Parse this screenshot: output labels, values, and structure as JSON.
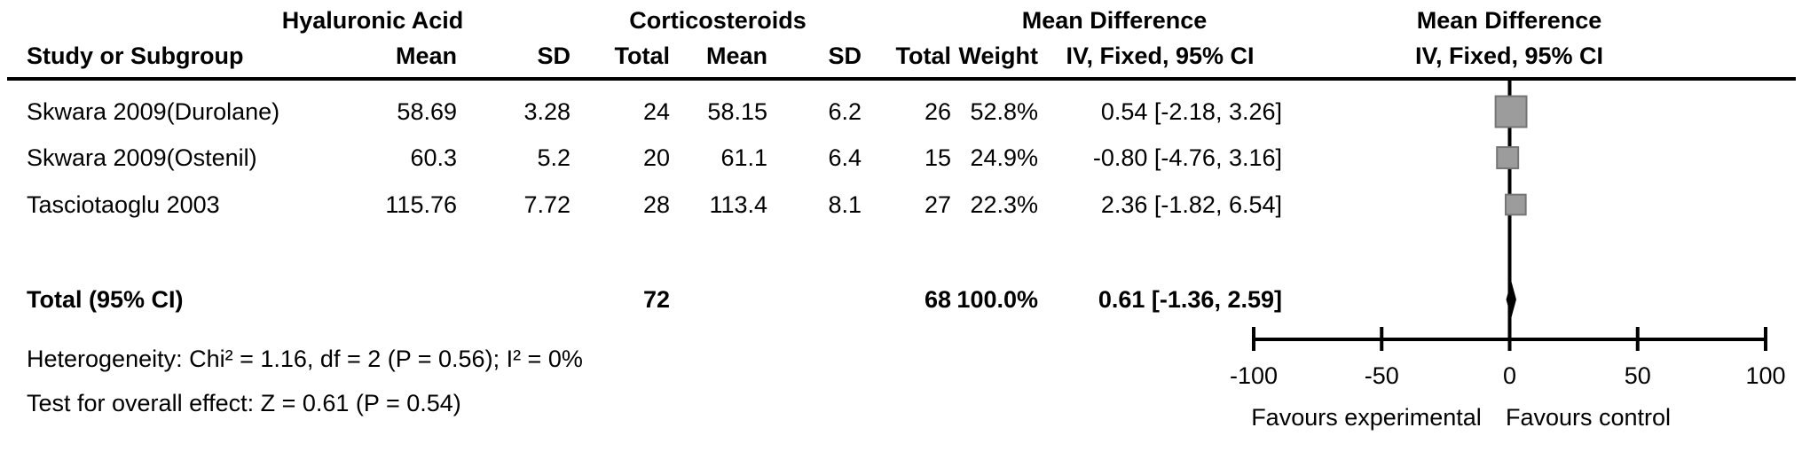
{
  "table": {
    "group_headers": {
      "exp": "Hyaluronic Acid",
      "ctl": "Corticosteroids",
      "md_left": "Mean Difference",
      "md_right": "Mean Difference"
    },
    "columns": {
      "study": "Study or Subgroup",
      "mean1": "Mean",
      "sd1": "SD",
      "total1": "Total",
      "mean2": "Mean",
      "sd2": "SD",
      "total2": "Total",
      "weight": "Weight",
      "ci": "IV, Fixed, 95% CI",
      "ci_plot": "IV, Fixed, 95% CI"
    },
    "rows": [
      {
        "study": "Skwara 2009(Durolane)",
        "mean1": "58.69",
        "sd1": "3.28",
        "total1": "24",
        "mean2": "58.15",
        "sd2": "6.2",
        "total2": "26",
        "weight": "52.8%",
        "ci": "0.54 [-2.18, 3.26]"
      },
      {
        "study": "Skwara 2009(Ostenil)",
        "mean1": "60.3",
        "sd1": "5.2",
        "total1": "20",
        "mean2": "61.1",
        "sd2": "6.4",
        "total2": "15",
        "weight": "24.9%",
        "ci": "-0.80 [-4.76, 3.16]"
      },
      {
        "study": "Tasciotaoglu 2003",
        "mean1": "115.76",
        "sd1": "7.72",
        "total1": "28",
        "mean2": "113.4",
        "sd2": "8.1",
        "total2": "27",
        "weight": "22.3%",
        "ci": "2.36 [-1.82, 6.54]"
      }
    ],
    "total_row": {
      "label": "Total (95% CI)",
      "total1": "72",
      "total2": "68",
      "weight": "100.0%",
      "ci": "0.61 [-1.36, 2.59]"
    },
    "footer": {
      "heterogeneity": "Heterogeneity: Chi² = 1.16, df = 2 (P = 0.56); I² = 0%",
      "overall_effect": "Test for overall effect: Z = 0.61 (P = 0.54)"
    }
  },
  "chart_data": {
    "type": "scatter",
    "subtype": "forest-plot",
    "effect_measure": "Mean Difference, IV, Fixed, 95% CI",
    "studies": [
      {
        "name": "Skwara 2009(Durolane)",
        "effect": 0.54,
        "ci_low": -2.18,
        "ci_high": 3.26,
        "weight": 52.8
      },
      {
        "name": "Skwara 2009(Ostenil)",
        "effect": -0.8,
        "ci_low": -4.76,
        "ci_high": 3.16,
        "weight": 24.9
      },
      {
        "name": "Tasciotaoglu 2003",
        "effect": 2.36,
        "ci_low": -1.82,
        "ci_high": 6.54,
        "weight": 22.3
      }
    ],
    "total": {
      "label": "Total (95% CI)",
      "effect": 0.61,
      "ci_low": -1.36,
      "ci_high": 2.59,
      "weight": 100.0
    },
    "axis": {
      "min": -100,
      "max": 100,
      "ticks": [
        -100,
        -50,
        0,
        50,
        100
      ]
    },
    "xlabel_left": "Favours experimental",
    "xlabel_right": "Favours control",
    "heterogeneity": {
      "chi2": 1.16,
      "df": 2,
      "p": 0.56,
      "i2_pct": 0
    },
    "overall_effect": {
      "z": 0.61,
      "p": 0.54
    },
    "colors": {
      "marker_fill": "#9c9c9c",
      "marker_stroke": "#757575",
      "diamond": "#000000",
      "line": "#000000"
    }
  }
}
